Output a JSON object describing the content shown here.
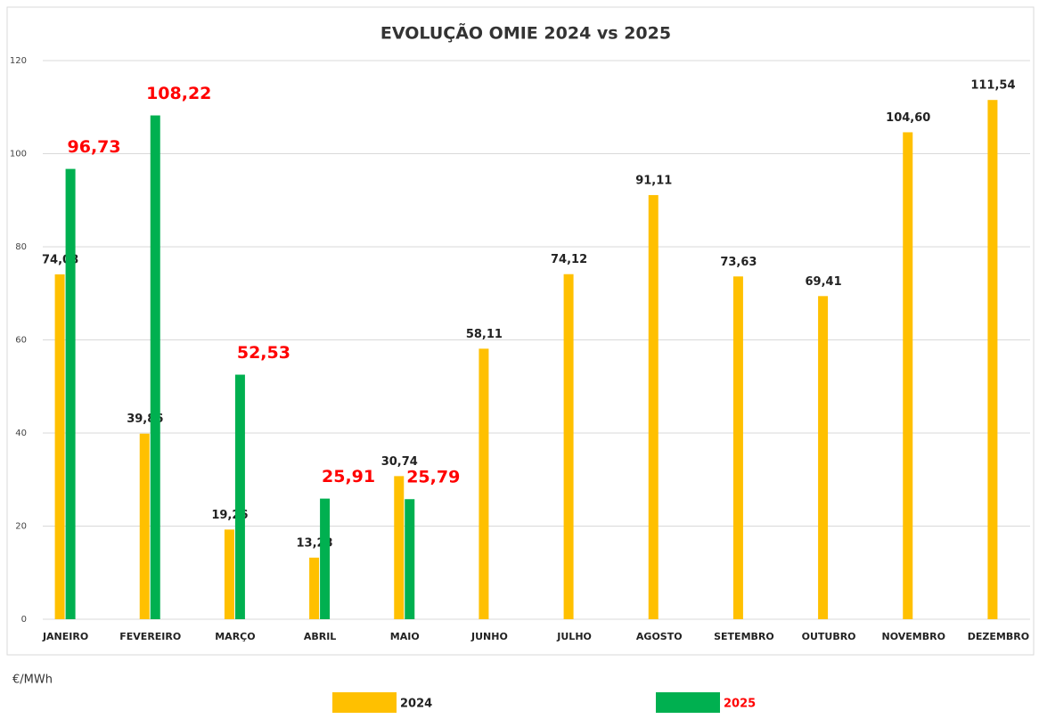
{
  "chart_data": {
    "type": "bar",
    "title": "EVOLUÇÃO OMIE 2024 vs 2025",
    "y_label": "€/MWh",
    "categories": [
      "JANEIRO",
      "FEVEREIRO",
      "MARÇO",
      "ABRIL",
      "MAIO",
      "JUNHO",
      "JULHO",
      "AGOSTO",
      "SETEMBRO",
      "OUTUBRO",
      "NOVEMBRO",
      "DEZEMBRO"
    ],
    "series": [
      {
        "name": "2024",
        "color": "#ffc000",
        "label_color": "#222222",
        "values": [
          74.08,
          39.86,
          19.26,
          13.23,
          30.74,
          58.11,
          74.12,
          91.11,
          73.63,
          69.41,
          104.6,
          111.54
        ],
        "value_labels": [
          "74,08",
          "39,86",
          "19,26",
          "13,23",
          "30,74",
          "58,11",
          "74,12",
          "91,11",
          "73,63",
          "69,41",
          "104,60",
          "111,54"
        ]
      },
      {
        "name": "2025",
        "color": "#00b050",
        "label_color": "#ff0000",
        "values": [
          96.73,
          108.22,
          52.53,
          25.91,
          25.79,
          null,
          null,
          null,
          null,
          null,
          null,
          null
        ],
        "value_labels": [
          "96,73",
          "108,22",
          "52,53",
          "25,91",
          "25,79",
          null,
          null,
          null,
          null,
          null,
          null,
          null
        ]
      }
    ],
    "ylim": [
      0,
      120
    ],
    "yticks": [
      0,
      20,
      40,
      60,
      80,
      100,
      120
    ],
    "grid": true
  }
}
